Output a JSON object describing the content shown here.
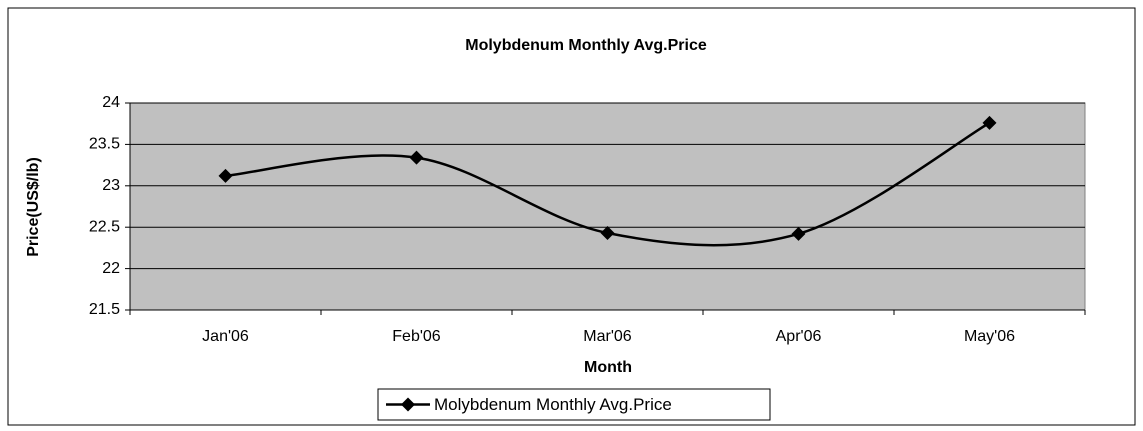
{
  "chart_data": {
    "type": "line",
    "title": "Molybdenum Monthly Avg.Price",
    "x_label": "Month",
    "y_label": "Price(US$/lb)",
    "categories": [
      "Jan'06",
      "Feb'06",
      "Mar'06",
      "Apr'06",
      "May'06"
    ],
    "series": [
      {
        "name": "Molybdenum Monthly Avg.Price",
        "color": "#000000",
        "values": [
          23.12,
          23.34,
          22.43,
          22.42,
          23.76
        ]
      }
    ],
    "ylim": [
      21.5,
      24
    ],
    "yticks": [
      21.5,
      22,
      22.5,
      23,
      23.5,
      24
    ],
    "grid": true,
    "smooth": true,
    "legend": "bottom",
    "plot_background": "#c0c0c0"
  }
}
